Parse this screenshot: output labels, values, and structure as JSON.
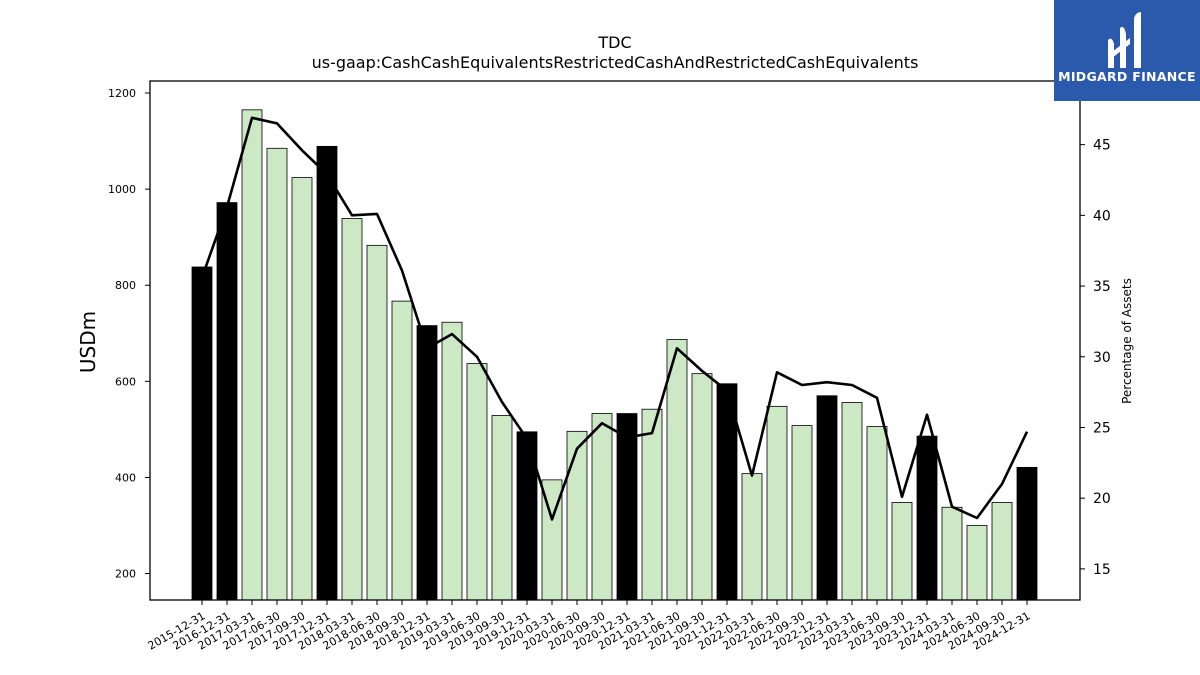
{
  "chart_data": {
    "type": "bar",
    "title": "TDC",
    "subtitle": "us-gaap:CashCashEquivalentsRestrictedCashAndRestrictedCashEquivalents",
    "ylabel": "USDm",
    "y2label": "Percentage of Assets",
    "ylim": [
      145,
      1225
    ],
    "y2lim": [
      12.8,
      49.5
    ],
    "yticks": [
      200,
      400,
      600,
      800,
      1000,
      1200
    ],
    "y2ticks": [
      15,
      20,
      25,
      30,
      35,
      40,
      45
    ],
    "categories": [
      "2015-12-31",
      "2016-12-31",
      "2017-03-31",
      "2017-06-30",
      "2017-09-30",
      "2017-12-31",
      "2018-03-31",
      "2018-06-30",
      "2018-09-30",
      "2018-12-31",
      "2019-03-31",
      "2019-06-30",
      "2019-09-30",
      "2019-12-31",
      "2020-03-31",
      "2020-06-30",
      "2020-09-30",
      "2020-12-31",
      "2021-03-31",
      "2021-06-30",
      "2021-09-30",
      "2021-12-31",
      "2022-03-31",
      "2022-06-30",
      "2022-09-30",
      "2022-12-31",
      "2023-03-31",
      "2023-06-30",
      "2023-09-30",
      "2023-12-31",
      "2024-03-31",
      "2024-06-30",
      "2024-09-30",
      "2024-12-31"
    ],
    "series": [
      {
        "kind": "bar",
        "values": [
          838,
          972,
          1165,
          1085,
          1024,
          1089,
          939,
          883,
          767,
          716,
          723,
          637,
          529,
          495,
          395,
          496,
          533,
          533,
          542,
          687,
          616,
          595,
          408,
          548,
          508,
          570,
          556,
          506,
          348,
          486,
          338,
          300,
          348,
          421
        ],
        "year_end_color": "#000000",
        "quarter_color": "#cce8c5"
      },
      {
        "kind": "line",
        "axis": "right",
        "color": "#000000",
        "values": [
          35.6,
          40.6,
          46.9,
          46.5,
          44.6,
          42.9,
          40.0,
          40.1,
          36.1,
          30.6,
          31.6,
          30.0,
          26.8,
          24.2,
          18.5,
          23.5,
          25.3,
          24.3,
          24.6,
          30.6,
          29.0,
          27.6,
          21.6,
          28.9,
          28.0,
          28.2,
          28.0,
          27.1,
          20.1,
          25.9,
          19.4,
          18.6,
          21.0,
          24.7
        ]
      }
    ],
    "grid": false
  },
  "logo": {
    "text": "MIDGARD FINANCE"
  }
}
